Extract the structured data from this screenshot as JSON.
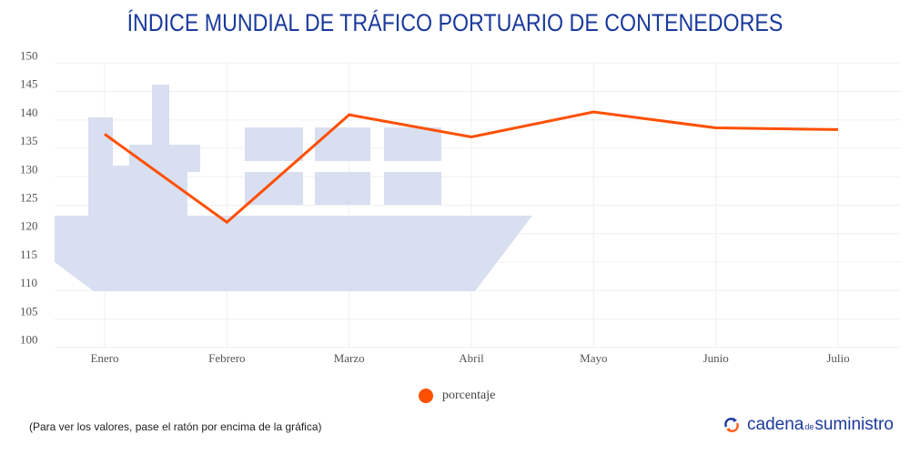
{
  "chart_data": {
    "type": "line",
    "title": "ÍNDICE MUNDIAL DE TRÁFICO PORTUARIO DE CONTENEDORES",
    "categories": [
      "Enero",
      "Febrero",
      "Marzo",
      "Abril",
      "Mayo",
      "Junio",
      "Julio"
    ],
    "series": [
      {
        "name": "porcentaje",
        "values": [
          137.5,
          122.0,
          140.9,
          137.0,
          141.4,
          138.6,
          138.3
        ],
        "color": "#ff4f00"
      }
    ],
    "ylim": [
      100,
      150
    ],
    "yticks": [
      100,
      105,
      110,
      115,
      120,
      125,
      130,
      135,
      140,
      145,
      150
    ],
    "grid": true,
    "legend": "bottom-center"
  },
  "footer": {
    "note": "(Para ver los valores, pase el ratón por encima de la gráfica)",
    "logo": {
      "part1": "cadena",
      "part2": "de",
      "part3": "suministro"
    }
  },
  "colors": {
    "title": "#1a3a9c",
    "ship": "#d8dff0",
    "line": "#ff4f00"
  }
}
